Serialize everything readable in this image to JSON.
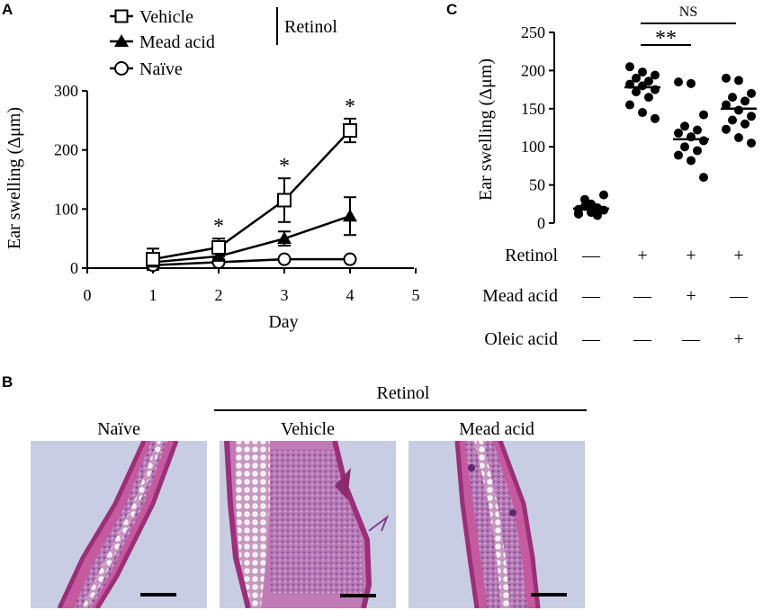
{
  "panels": {
    "a": {
      "letter": "A"
    },
    "b": {
      "letter": "B"
    },
    "c": {
      "letter": "C"
    }
  },
  "chart_data": [
    {
      "id": "A",
      "type": "line",
      "title": "",
      "xlabel": "Day",
      "ylabel": "Ear swelling (Δμm)",
      "xlim": [
        0,
        5
      ],
      "ylim": [
        0,
        300
      ],
      "xticks": [
        "0",
        "1",
        "2",
        "3",
        "4",
        "5"
      ],
      "yticks": [
        "0",
        "100",
        "200",
        "300"
      ],
      "legend_group_label": "Retinol",
      "series": [
        {
          "name": "Vehicle",
          "marker": "square-open",
          "x": [
            1,
            2,
            3,
            4
          ],
          "y": [
            15,
            35,
            115,
            233
          ],
          "err": [
            18,
            15,
            37,
            20
          ]
        },
        {
          "name": "Mead acid",
          "marker": "triangle-filled",
          "x": [
            1,
            2,
            3,
            4
          ],
          "y": [
            10,
            20,
            50,
            88
          ],
          "err": [
            5,
            5,
            12,
            32
          ]
        },
        {
          "name": "Naïve",
          "marker": "circle-open",
          "x": [
            1,
            2,
            3,
            4
          ],
          "y": [
            5,
            10,
            15,
            15
          ],
          "err": [
            2,
            2,
            2,
            1
          ]
        }
      ],
      "significance": [
        {
          "x": 2,
          "label": "*"
        },
        {
          "x": 3,
          "label": "*"
        },
        {
          "x": 4,
          "label": "*"
        }
      ]
    },
    {
      "id": "C",
      "type": "scatter",
      "title": "",
      "ylabel": "Ear swelling (Δμm)",
      "ylim": [
        0,
        250
      ],
      "yticks": [
        "0",
        "50",
        "100",
        "150",
        "200",
        "250"
      ],
      "groups": [
        {
          "points": [
            12,
            14,
            17,
            22,
            10,
            18,
            25,
            37,
            31,
            20,
            13,
            16
          ],
          "mean": 19
        },
        {
          "points": [
            205,
            198,
            194,
            190,
            186,
            182,
            180,
            175,
            172,
            165,
            155,
            145,
            137
          ],
          "mean": 178
        },
        {
          "points": [
            185,
            183,
            142,
            127,
            122,
            118,
            113,
            108,
            100,
            95,
            89,
            82,
            60
          ],
          "mean": 110
        },
        {
          "points": [
            190,
            187,
            170,
            165,
            160,
            155,
            148,
            140,
            135,
            130,
            123,
            112,
            105
          ],
          "mean": 150
        }
      ],
      "conditions": [
        {
          "label": "Retinol",
          "values": [
            "—",
            "+",
            "+",
            "+"
          ]
        },
        {
          "label": "Mead acid",
          "values": [
            "—",
            "—",
            "+",
            "—"
          ]
        },
        {
          "label": "Oleic acid",
          "values": [
            "—",
            "—",
            "—",
            "+"
          ]
        }
      ],
      "significance": [
        {
          "from": 2,
          "to": 4,
          "label": "NS"
        },
        {
          "from": 2,
          "to": 3,
          "label": "**"
        }
      ]
    }
  ],
  "histology": {
    "group_label": "Retinol",
    "images": [
      {
        "label": "Naïve"
      },
      {
        "label": "Vehicle"
      },
      {
        "label": "Mead acid"
      }
    ]
  },
  "colors": {
    "ink": "#000000",
    "slide_background": "#c9cde3",
    "tissue_pink": "#c65a9f",
    "tissue_purple": "#7a3f8e",
    "epidermis": "#9b2f78",
    "fat_cell": "#f1f0f4"
  }
}
